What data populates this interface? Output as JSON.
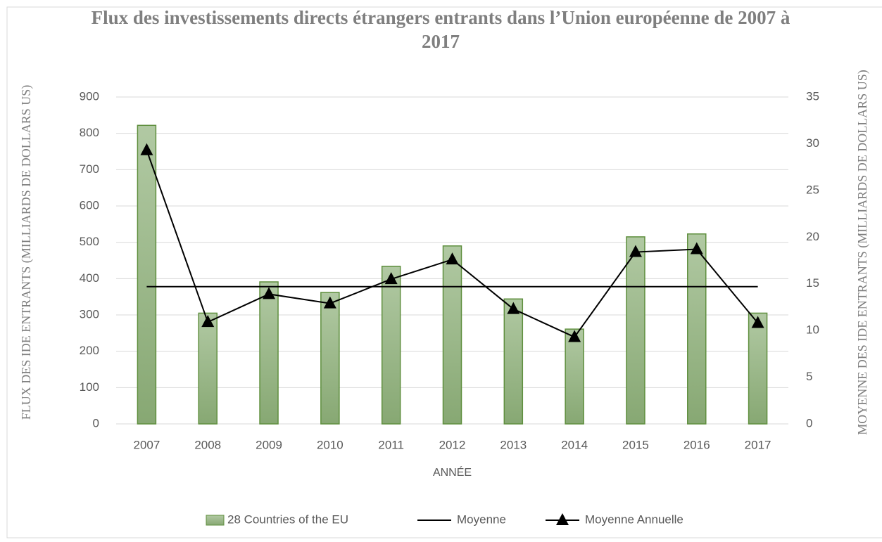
{
  "chart_data": {
    "type": "bar",
    "title": "Flux des investissements directs étrangers entrants dans l’Union européenne de 2007 à 2017",
    "x_label": "ANNÉE",
    "y_label": "FLUX DES IDE ENTRANTS (MILLIARDS DE DOLLARS US)",
    "y2_label": "MOYENNE DES IDE ENTRANTS (MILLIARDS DE DOLLARS US)",
    "categories": [
      "2007",
      "2008",
      "2009",
      "2010",
      "2011",
      "2012",
      "2013",
      "2014",
      "2015",
      "2016",
      "2017"
    ],
    "series": [
      {
        "name": "28 Countries of the EU",
        "type": "bar",
        "color": "#9dbb8a",
        "values": [
          822,
          305,
          391,
          362,
          434,
          490,
          344,
          261,
          515,
          523,
          305
        ]
      },
      {
        "name": "Moyenne",
        "type": "line",
        "axis": "y2",
        "color": "#000000",
        "values": [
          14.7,
          14.7,
          14.7,
          14.7,
          14.7,
          14.7,
          14.7,
          14.7,
          14.7,
          14.7,
          14.7
        ]
      },
      {
        "name": "Moyenne Annuelle",
        "type": "line",
        "marker": "triangle",
        "axis": "y2",
        "color": "#000000",
        "values": [
          29.3,
          10.9,
          13.9,
          12.9,
          15.5,
          17.6,
          12.3,
          9.3,
          18.4,
          18.7,
          10.8
        ]
      }
    ],
    "ylim": [
      0,
      900
    ],
    "yticks": [
      0,
      100,
      200,
      300,
      400,
      500,
      600,
      700,
      800,
      900
    ],
    "y2lim": [
      0,
      35
    ],
    "y2ticks": [
      0,
      5,
      10,
      15,
      20,
      25,
      30,
      35
    ],
    "grid": true,
    "legend": "bottom"
  }
}
